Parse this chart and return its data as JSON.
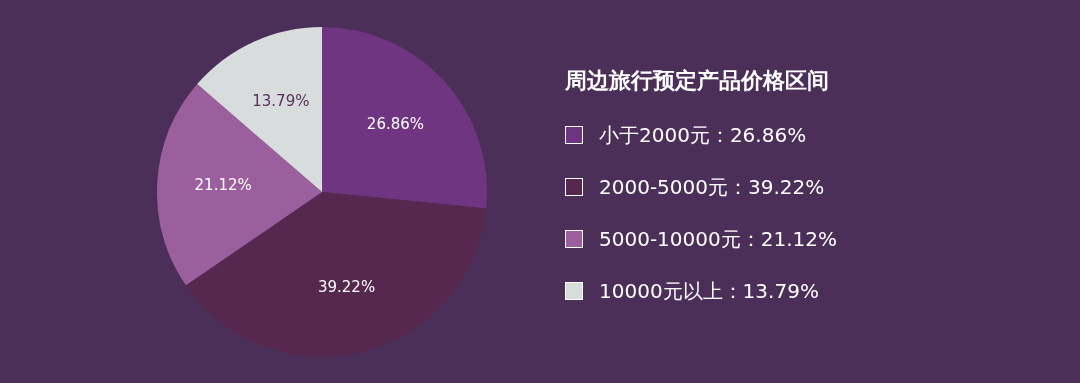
{
  "chart_data": {
    "type": "pie",
    "legend_title": "周边旅行预定产品价格区间",
    "categories": [
      "小于2000元：26.86%",
      "2000-5000元：39.22%",
      "5000-10000元：21.12%",
      "10000元以上：13.79%"
    ],
    "values": [
      26.86,
      39.22,
      21.12,
      13.79
    ],
    "colors": [
      "#6f3580",
      "#56284f",
      "#9b5f9d",
      "#d9dcdc"
    ],
    "value_labels": [
      "26.86%",
      "39.22%",
      "21.12%",
      "13.79%"
    ],
    "legend": "right"
  }
}
